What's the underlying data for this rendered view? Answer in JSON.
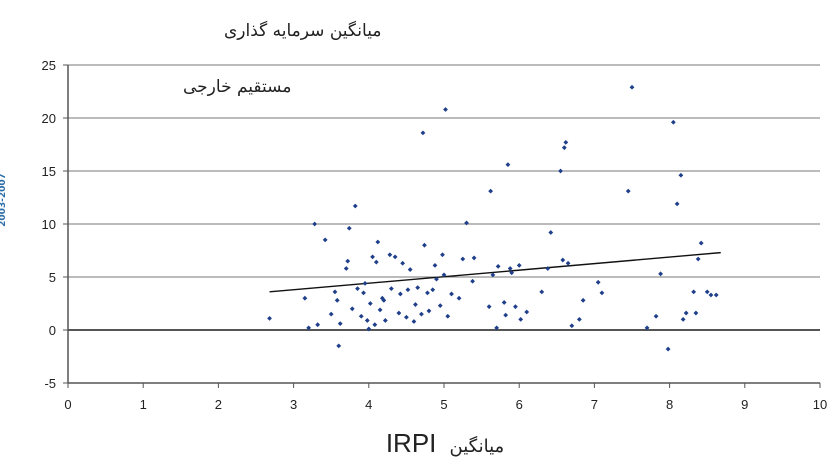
{
  "chart_data": {
    "type": "scatter",
    "title_lines": [
      "میانگین سرمایه گذاری",
      "مستقیم خارجی"
    ],
    "side_label": "2003-2007",
    "xlabel_text": "میانگین",
    "xlabel_latin": "IRPI",
    "xlim": [
      0,
      10
    ],
    "ylim": [
      -5,
      25
    ],
    "x_ticks": [
      0,
      1,
      2,
      3,
      4,
      5,
      6,
      7,
      8,
      9,
      10
    ],
    "y_ticks": [
      -5,
      0,
      5,
      10,
      15,
      20,
      25
    ],
    "grid": "horizontal",
    "points": [
      {
        "x": 2.68,
        "y": 1.1
      },
      {
        "x": 3.15,
        "y": 3.0
      },
      {
        "x": 3.2,
        "y": 0.2
      },
      {
        "x": 3.28,
        "y": 10.0
      },
      {
        "x": 3.32,
        "y": 0.5
      },
      {
        "x": 3.42,
        "y": 8.5
      },
      {
        "x": 3.5,
        "y": 1.5
      },
      {
        "x": 3.55,
        "y": 3.6
      },
      {
        "x": 3.58,
        "y": 2.8
      },
      {
        "x": 3.6,
        "y": -1.5
      },
      {
        "x": 3.62,
        "y": 0.6
      },
      {
        "x": 3.7,
        "y": 5.8
      },
      {
        "x": 3.72,
        "y": 6.5
      },
      {
        "x": 3.74,
        "y": 9.6
      },
      {
        "x": 3.78,
        "y": 2.0
      },
      {
        "x": 3.82,
        "y": 11.7
      },
      {
        "x": 3.85,
        "y": 3.9
      },
      {
        "x": 3.9,
        "y": 1.3
      },
      {
        "x": 3.93,
        "y": 3.5
      },
      {
        "x": 3.95,
        "y": 4.4
      },
      {
        "x": 3.98,
        "y": 0.9
      },
      {
        "x": 4.0,
        "y": 0.1
      },
      {
        "x": 4.02,
        "y": 2.5
      },
      {
        "x": 4.05,
        "y": 6.9
      },
      {
        "x": 4.08,
        "y": 0.5
      },
      {
        "x": 4.1,
        "y": 6.4
      },
      {
        "x": 4.12,
        "y": 8.3
      },
      {
        "x": 4.15,
        "y": 1.9
      },
      {
        "x": 4.18,
        "y": 3.0
      },
      {
        "x": 4.2,
        "y": 2.8
      },
      {
        "x": 4.22,
        "y": 0.9
      },
      {
        "x": 4.28,
        "y": 7.1
      },
      {
        "x": 4.3,
        "y": 3.9
      },
      {
        "x": 4.35,
        "y": 6.9
      },
      {
        "x": 4.4,
        "y": 1.6
      },
      {
        "x": 4.42,
        "y": 3.4
      },
      {
        "x": 4.45,
        "y": 6.3
      },
      {
        "x": 4.5,
        "y": 1.2
      },
      {
        "x": 4.52,
        "y": 3.8
      },
      {
        "x": 4.55,
        "y": 5.7
      },
      {
        "x": 4.6,
        "y": 0.8
      },
      {
        "x": 4.62,
        "y": 2.4
      },
      {
        "x": 4.65,
        "y": 4.0
      },
      {
        "x": 4.7,
        "y": 1.5
      },
      {
        "x": 4.72,
        "y": 18.6
      },
      {
        "x": 4.74,
        "y": 8.0
      },
      {
        "x": 4.78,
        "y": 3.5
      },
      {
        "x": 4.8,
        "y": 1.8
      },
      {
        "x": 4.85,
        "y": 3.8
      },
      {
        "x": 4.88,
        "y": 6.1
      },
      {
        "x": 4.9,
        "y": 4.8
      },
      {
        "x": 4.95,
        "y": 2.3
      },
      {
        "x": 4.98,
        "y": 7.1
      },
      {
        "x": 5.0,
        "y": 5.2
      },
      {
        "x": 5.02,
        "y": 20.8
      },
      {
        "x": 5.05,
        "y": 1.3
      },
      {
        "x": 5.1,
        "y": 3.4
      },
      {
        "x": 5.2,
        "y": 3.0
      },
      {
        "x": 5.25,
        "y": 6.7
      },
      {
        "x": 5.3,
        "y": 10.1
      },
      {
        "x": 5.38,
        "y": 4.6
      },
      {
        "x": 5.4,
        "y": 6.8
      },
      {
        "x": 5.6,
        "y": 2.2
      },
      {
        "x": 5.62,
        "y": 13.1
      },
      {
        "x": 5.65,
        "y": 5.2
      },
      {
        "x": 5.7,
        "y": 0.2
      },
      {
        "x": 5.72,
        "y": 6.0
      },
      {
        "x": 5.8,
        "y": 2.6
      },
      {
        "x": 5.82,
        "y": 1.4
      },
      {
        "x": 5.85,
        "y": 15.6
      },
      {
        "x": 5.88,
        "y": 5.8
      },
      {
        "x": 5.9,
        "y": 5.4
      },
      {
        "x": 5.95,
        "y": 2.2
      },
      {
        "x": 6.0,
        "y": 6.1
      },
      {
        "x": 6.02,
        "y": 1.0
      },
      {
        "x": 6.1,
        "y": 1.7
      },
      {
        "x": 6.3,
        "y": 3.6
      },
      {
        "x": 6.38,
        "y": 5.8
      },
      {
        "x": 6.42,
        "y": 9.2
      },
      {
        "x": 6.55,
        "y": 15.0
      },
      {
        "x": 6.58,
        "y": 6.6
      },
      {
        "x": 6.6,
        "y": 17.2
      },
      {
        "x": 6.62,
        "y": 17.7
      },
      {
        "x": 6.65,
        "y": 6.3
      },
      {
        "x": 6.7,
        "y": 0.4
      },
      {
        "x": 6.8,
        "y": 1.0
      },
      {
        "x": 6.85,
        "y": 2.8
      },
      {
        "x": 7.05,
        "y": 4.5
      },
      {
        "x": 7.1,
        "y": 3.5
      },
      {
        "x": 7.45,
        "y": 13.1
      },
      {
        "x": 7.5,
        "y": 22.9
      },
      {
        "x": 7.7,
        "y": 0.2
      },
      {
        "x": 7.82,
        "y": 1.3
      },
      {
        "x": 7.88,
        "y": 5.3
      },
      {
        "x": 7.98,
        "y": -1.8
      },
      {
        "x": 8.05,
        "y": 19.6
      },
      {
        "x": 8.1,
        "y": 11.9
      },
      {
        "x": 8.15,
        "y": 14.6
      },
      {
        "x": 8.18,
        "y": 1.0
      },
      {
        "x": 8.22,
        "y": 1.6
      },
      {
        "x": 8.32,
        "y": 3.6
      },
      {
        "x": 8.35,
        "y": 1.6
      },
      {
        "x": 8.38,
        "y": 6.7
      },
      {
        "x": 8.42,
        "y": 8.2
      },
      {
        "x": 8.5,
        "y": 3.6
      },
      {
        "x": 8.55,
        "y": 3.3
      },
      {
        "x": 8.62,
        "y": 3.3
      }
    ],
    "trendline": {
      "x": [
        2.68,
        8.68
      ],
      "y": [
        3.6,
        7.3
      ]
    },
    "colors": {
      "points": "#1f3f8a",
      "trendline": "#111111",
      "axis": "#555555",
      "grid": "#777777",
      "side_label": "#2f6fa8"
    }
  }
}
